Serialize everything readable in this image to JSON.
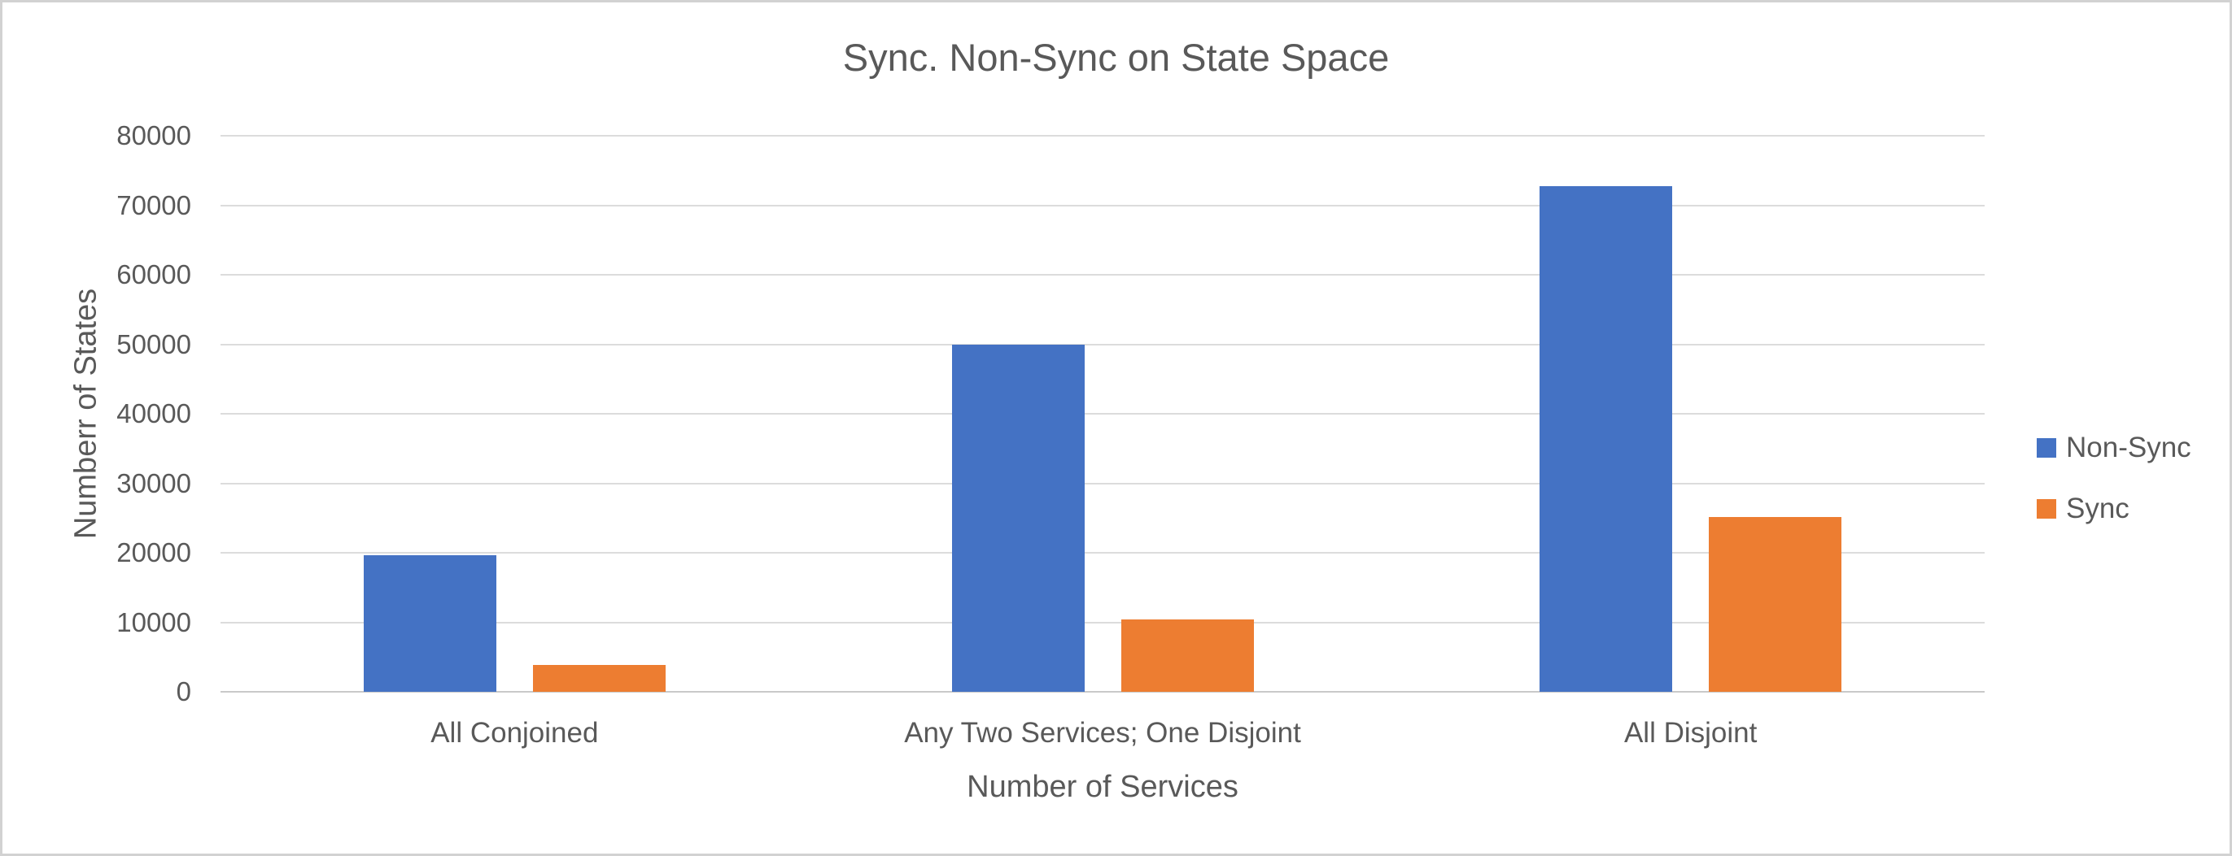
{
  "chart_data": {
    "type": "bar",
    "title": "Sync. Non-Sync on State Space",
    "xlabel": "Number of Services",
    "ylabel": "Numberr of States",
    "categories": [
      "All Conjoined",
      "Any Two Services; One Disjoint",
      "All Disjoint"
    ],
    "series": [
      {
        "name": "Non-Sync",
        "color": "#4472C4",
        "values": [
          19700,
          50000,
          72800
        ]
      },
      {
        "name": "Sync",
        "color": "#ED7D31",
        "values": [
          3900,
          10450,
          25100
        ]
      }
    ],
    "ylim": [
      0,
      80000
    ],
    "ytick_step": 10000,
    "ytick_labels": [
      "0",
      "10000",
      "20000",
      "30000",
      "40000",
      "50000",
      "60000",
      "70000",
      "80000"
    ],
    "grid": true,
    "legend_position": "right"
  },
  "colors": {
    "background": "#FFFFFF",
    "border": "#D2D2D2",
    "gridline": "#DCDCDC",
    "axis_line": "#C9C9C9",
    "text": "#595959",
    "non_sync_bar": "#4472C4",
    "sync_bar": "#ED7D31"
  }
}
